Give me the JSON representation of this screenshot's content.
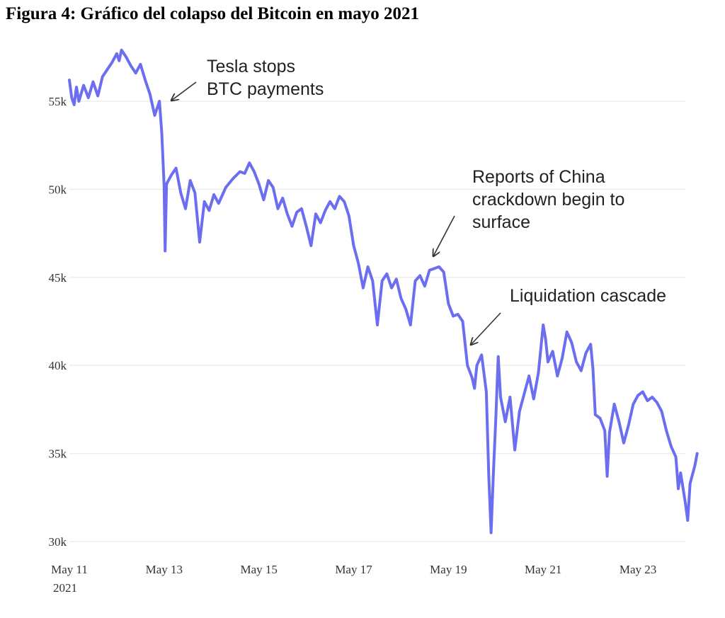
{
  "figure_title": "Figura 4: Gráfico del colapso del Bitcoin en mayo 2021",
  "colors": {
    "line": "#6c6ef0",
    "grid": "#eeeeee",
    "arrow": "#333333"
  },
  "chart_data": {
    "type": "line",
    "title": "",
    "xlabel": "",
    "ylabel": "",
    "x_ticks": [
      {
        "day": 11,
        "label": "May 11",
        "sub": "2021"
      },
      {
        "day": 13,
        "label": "May 13"
      },
      {
        "day": 15,
        "label": "May 15"
      },
      {
        "day": 17,
        "label": "May 17"
      },
      {
        "day": 19,
        "label": "May 19"
      },
      {
        "day": 21,
        "label": "May 21"
      },
      {
        "day": 23,
        "label": "May 23"
      }
    ],
    "y_ticks": [
      {
        "value": 30000,
        "label": "30k"
      },
      {
        "value": 35000,
        "label": "35k"
      },
      {
        "value": 40000,
        "label": "40k"
      },
      {
        "value": 45000,
        "label": "45k"
      },
      {
        "value": 50000,
        "label": "50k"
      },
      {
        "value": 55000,
        "label": "55k"
      }
    ],
    "xlim": [
      11,
      24
    ],
    "ylim": [
      30000,
      55000
    ],
    "grid": true,
    "series": [
      {
        "values": [
          [
            11.0,
            56200
          ],
          [
            11.05,
            55200
          ],
          [
            11.1,
            54800
          ],
          [
            11.15,
            55800
          ],
          [
            11.2,
            55000
          ],
          [
            11.3,
            55900
          ],
          [
            11.4,
            55200
          ],
          [
            11.5,
            56100
          ],
          [
            11.6,
            55300
          ],
          [
            11.7,
            56400
          ],
          [
            11.8,
            56800
          ],
          [
            11.9,
            57200
          ],
          [
            12.0,
            57700
          ],
          [
            12.05,
            57300
          ],
          [
            12.1,
            57900
          ],
          [
            12.2,
            57500
          ],
          [
            12.3,
            57000
          ],
          [
            12.4,
            56600
          ],
          [
            12.5,
            57100
          ],
          [
            12.6,
            56200
          ],
          [
            12.7,
            55400
          ],
          [
            12.8,
            54200
          ],
          [
            12.9,
            55000
          ],
          [
            12.95,
            53200
          ],
          [
            13.0,
            50200
          ],
          [
            13.02,
            46500
          ],
          [
            13.05,
            50300
          ],
          [
            13.15,
            50800
          ],
          [
            13.25,
            51200
          ],
          [
            13.35,
            49800
          ],
          [
            13.45,
            48900
          ],
          [
            13.55,
            50500
          ],
          [
            13.65,
            49800
          ],
          [
            13.75,
            47000
          ],
          [
            13.85,
            49300
          ],
          [
            13.95,
            48800
          ],
          [
            14.05,
            49700
          ],
          [
            14.15,
            49200
          ],
          [
            14.3,
            50100
          ],
          [
            14.45,
            50600
          ],
          [
            14.6,
            51000
          ],
          [
            14.7,
            50900
          ],
          [
            14.8,
            51500
          ],
          [
            14.9,
            51000
          ],
          [
            15.0,
            50300
          ],
          [
            15.1,
            49400
          ],
          [
            15.2,
            50500
          ],
          [
            15.3,
            50100
          ],
          [
            15.4,
            48900
          ],
          [
            15.5,
            49500
          ],
          [
            15.6,
            48600
          ],
          [
            15.7,
            47900
          ],
          [
            15.8,
            48700
          ],
          [
            15.9,
            48900
          ],
          [
            16.0,
            47900
          ],
          [
            16.1,
            46800
          ],
          [
            16.2,
            48600
          ],
          [
            16.3,
            48100
          ],
          [
            16.4,
            48800
          ],
          [
            16.5,
            49300
          ],
          [
            16.6,
            48900
          ],
          [
            16.7,
            49600
          ],
          [
            16.8,
            49300
          ],
          [
            16.9,
            48500
          ],
          [
            17.0,
            46800
          ],
          [
            17.1,
            45800
          ],
          [
            17.2,
            44400
          ],
          [
            17.3,
            45600
          ],
          [
            17.4,
            44800
          ],
          [
            17.5,
            42300
          ],
          [
            17.6,
            44800
          ],
          [
            17.7,
            45200
          ],
          [
            17.8,
            44400
          ],
          [
            17.9,
            44900
          ],
          [
            18.0,
            43800
          ],
          [
            18.1,
            43200
          ],
          [
            18.2,
            42300
          ],
          [
            18.3,
            44800
          ],
          [
            18.4,
            45100
          ],
          [
            18.5,
            44500
          ],
          [
            18.6,
            45400
          ],
          [
            18.7,
            45500
          ],
          [
            18.8,
            45600
          ],
          [
            18.9,
            45300
          ],
          [
            19.0,
            43500
          ],
          [
            19.1,
            42800
          ],
          [
            19.2,
            42900
          ],
          [
            19.3,
            42500
          ],
          [
            19.4,
            40000
          ],
          [
            19.5,
            39300
          ],
          [
            19.55,
            38700
          ],
          [
            19.6,
            40000
          ],
          [
            19.7,
            40600
          ],
          [
            19.8,
            38500
          ],
          [
            19.85,
            33800
          ],
          [
            19.9,
            30500
          ],
          [
            19.95,
            34000
          ],
          [
            20.0,
            37000
          ],
          [
            20.05,
            40500
          ],
          [
            20.1,
            38200
          ],
          [
            20.2,
            36800
          ],
          [
            20.3,
            38200
          ],
          [
            20.4,
            35200
          ],
          [
            20.5,
            37400
          ],
          [
            20.6,
            38400
          ],
          [
            20.7,
            39400
          ],
          [
            20.8,
            38100
          ],
          [
            20.9,
            39600
          ],
          [
            21.0,
            42300
          ],
          [
            21.05,
            41500
          ],
          [
            21.1,
            40200
          ],
          [
            21.2,
            40800
          ],
          [
            21.3,
            39400
          ],
          [
            21.4,
            40400
          ],
          [
            21.5,
            41900
          ],
          [
            21.6,
            41300
          ],
          [
            21.7,
            40200
          ],
          [
            21.8,
            39700
          ],
          [
            21.9,
            40700
          ],
          [
            22.0,
            41200
          ],
          [
            22.05,
            39800
          ],
          [
            22.1,
            37200
          ],
          [
            22.2,
            37000
          ],
          [
            22.3,
            36300
          ],
          [
            22.35,
            33700
          ],
          [
            22.4,
            36200
          ],
          [
            22.5,
            37800
          ],
          [
            22.6,
            36800
          ],
          [
            22.7,
            35600
          ],
          [
            22.8,
            36600
          ],
          [
            22.9,
            37800
          ],
          [
            23.0,
            38300
          ],
          [
            23.1,
            38500
          ],
          [
            23.2,
            38000
          ],
          [
            23.3,
            38200
          ],
          [
            23.4,
            37900
          ],
          [
            23.5,
            37400
          ],
          [
            23.6,
            36300
          ],
          [
            23.7,
            35400
          ],
          [
            23.8,
            34800
          ],
          [
            23.85,
            33000
          ],
          [
            23.9,
            33900
          ],
          [
            24.0,
            32200
          ],
          [
            24.05,
            31200
          ],
          [
            24.1,
            33300
          ],
          [
            24.2,
            34300
          ],
          [
            24.25,
            35000
          ]
        ]
      }
    ],
    "annotations": [
      {
        "lines": [
          "Tesla stops",
          "BTC payments"
        ],
        "x": 13.0,
        "y": 54700
      },
      {
        "lines": [
          "Reports of China",
          "crackdown begin to",
          "surface"
        ],
        "x": 18.7,
        "y": 45600
      },
      {
        "lines": [
          "Liquidation cascade"
        ],
        "x": 19.5,
        "y": 41000
      }
    ]
  }
}
